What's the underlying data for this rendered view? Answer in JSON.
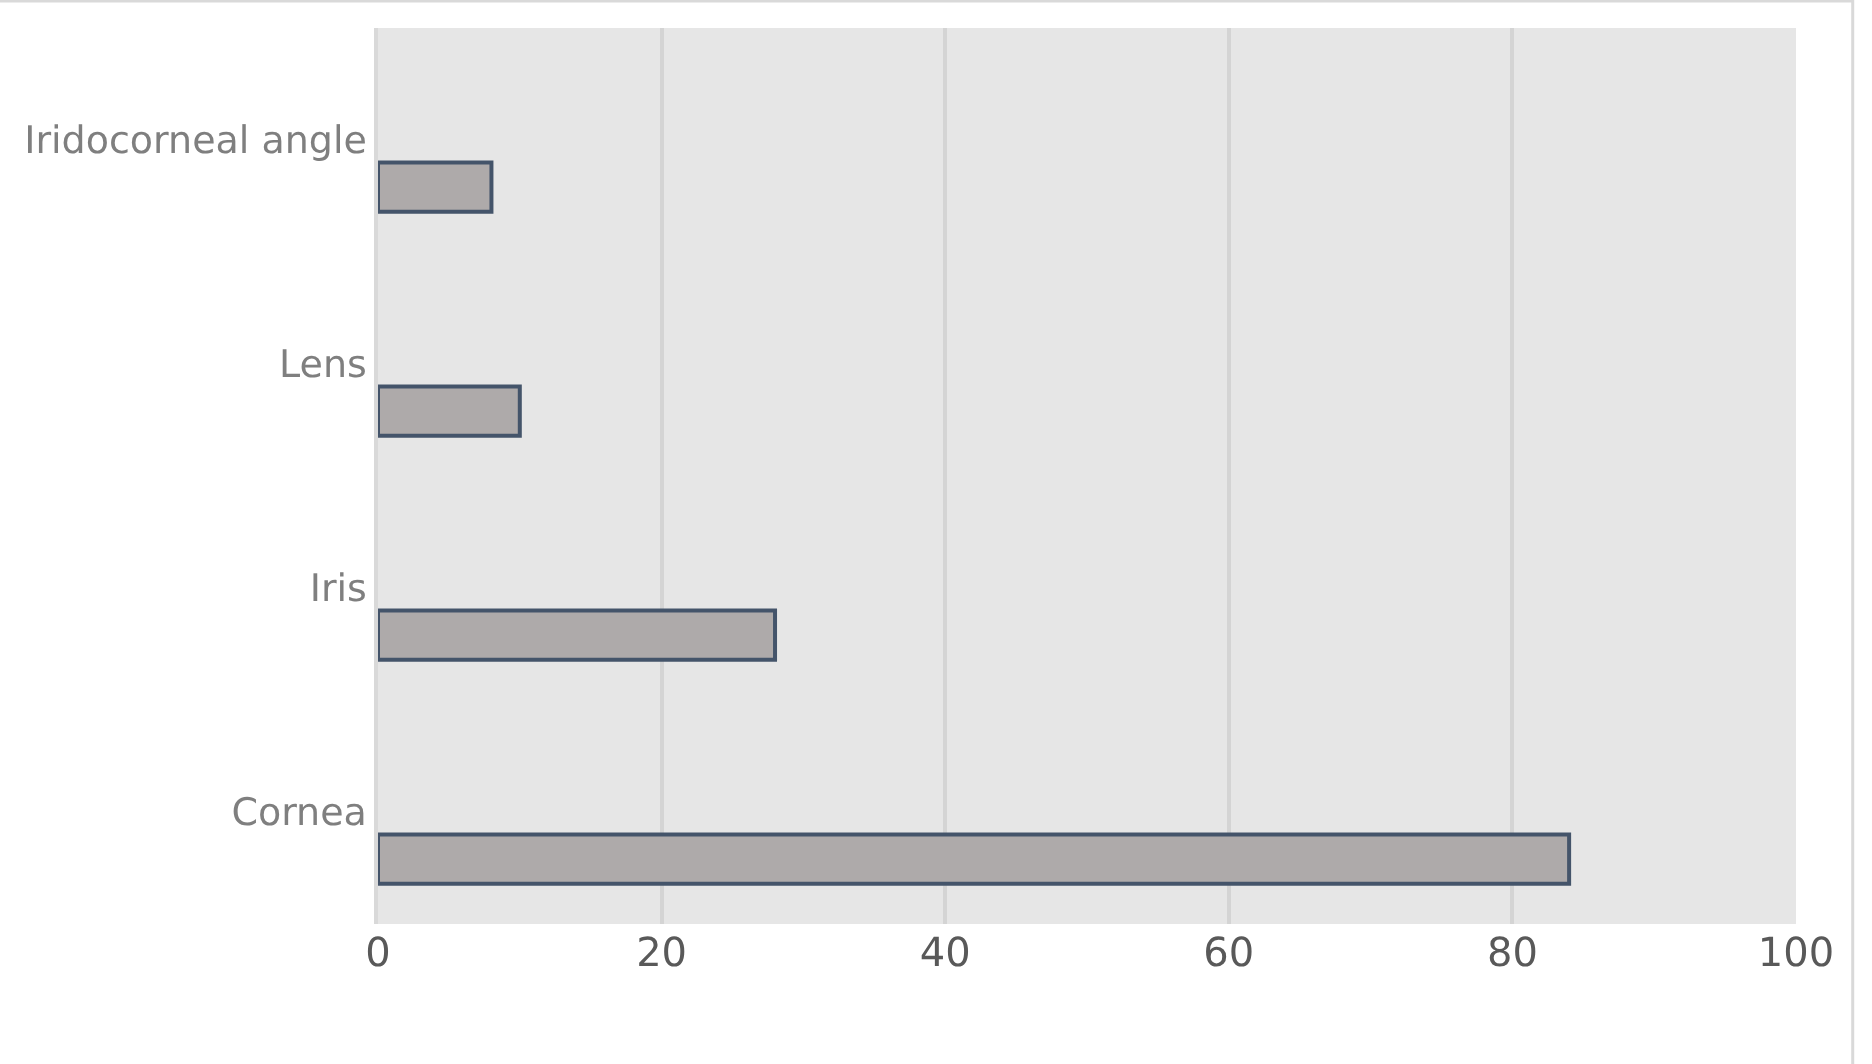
{
  "chart_data": {
    "type": "bar",
    "orientation": "horizontal",
    "categories": [
      "Iridocorneal angle",
      "Lens",
      "Iris",
      "Cornea"
    ],
    "values": [
      8,
      10,
      28,
      84
    ],
    "color": "#aeaaaa",
    "xlim": [
      0,
      100
    ],
    "xticks": [
      0,
      20,
      40,
      60,
      80,
      100
    ],
    "grid": "x"
  }
}
